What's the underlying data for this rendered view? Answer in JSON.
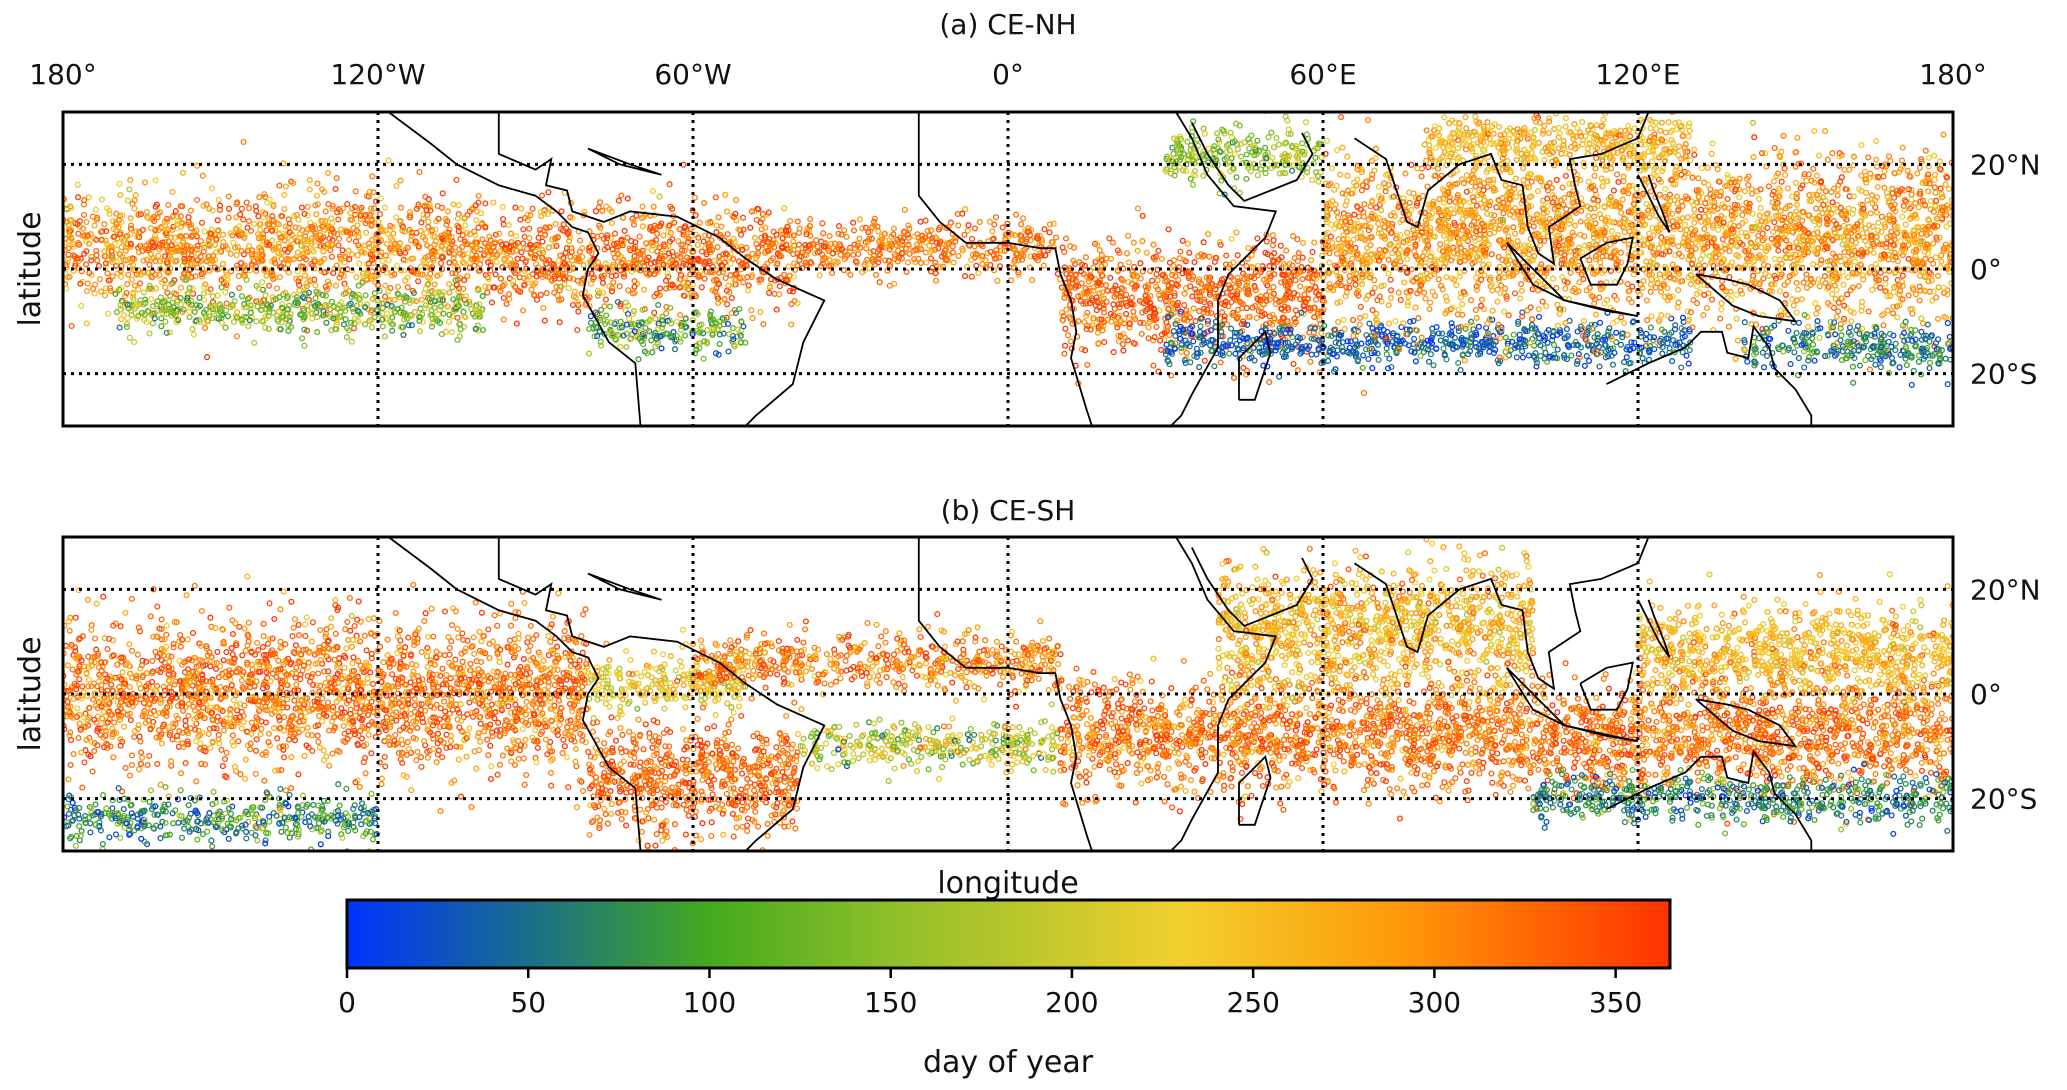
{
  "chart_data": [
    {
      "type": "scatter",
      "title": "(a) CE-NH",
      "xlabel": "",
      "ylabel": "latitude",
      "xlim": [
        -180,
        180
      ],
      "ylim": [
        -30,
        30
      ],
      "grid": true,
      "x_ticks": [
        -180,
        -120,
        -60,
        0,
        60,
        120,
        180
      ],
      "x_tick_labels": [
        "180°",
        "120°W",
        "60°W",
        "0°",
        "60°E",
        "120°E",
        "180°"
      ],
      "y_ticks": [
        20,
        0,
        -20
      ],
      "y_tick_labels": [
        "20°N",
        "0°",
        "20°S"
      ],
      "color_variable": "day of year",
      "regions": [
        {
          "lon": [
            -180,
            -100
          ],
          "lat_center": 4,
          "lat_spread": 12,
          "doy_mean": 300,
          "doy_sd": 45
        },
        {
          "lon": [
            -170,
            -100
          ],
          "lat_center": -8,
          "lat_spread": 5,
          "doy_mean": 150,
          "doy_sd": 50
        },
        {
          "lon": [
            -100,
            -40
          ],
          "lat_center": 2,
          "lat_spread": 11,
          "doy_mean": 320,
          "doy_sd": 45
        },
        {
          "lon": [
            -80,
            -50
          ],
          "lat_center": -12,
          "lat_spread": 5,
          "doy_mean": 120,
          "doy_sd": 60
        },
        {
          "lon": [
            -40,
            10
          ],
          "lat_center": 4,
          "lat_spread": 6,
          "doy_mean": 320,
          "doy_sd": 30
        },
        {
          "lon": [
            10,
            60
          ],
          "lat_center": -5,
          "lat_spread": 12,
          "doy_mean": 330,
          "doy_sd": 35
        },
        {
          "lon": [
            30,
            60
          ],
          "lat_center": 22,
          "lat_spread": 6,
          "doy_mean": 160,
          "doy_sd": 40
        },
        {
          "lon": [
            30,
            130
          ],
          "lat_center": -14,
          "lat_spread": 5,
          "doy_mean": 40,
          "doy_sd": 30
        },
        {
          "lon": [
            60,
            180
          ],
          "lat_center": 6,
          "lat_spread": 18,
          "doy_mean": 290,
          "doy_sd": 40
        },
        {
          "lon": [
            80,
            130
          ],
          "lat_center": 24,
          "lat_spread": 6,
          "doy_mean": 260,
          "doy_sd": 30
        },
        {
          "lon": [
            140,
            180
          ],
          "lat_center": -15,
          "lat_spread": 5,
          "doy_mean": 60,
          "doy_sd": 40
        }
      ]
    },
    {
      "type": "scatter",
      "title": "(b) CE-SH",
      "xlabel": "longitude",
      "ylabel": "latitude",
      "xlim": [
        -180,
        180
      ],
      "ylim": [
        -30,
        30
      ],
      "grid": true,
      "x_ticks": [
        -180,
        -120,
        -60,
        0,
        60,
        120,
        180
      ],
      "x_tick_labels": [],
      "y_ticks": [
        20,
        0,
        -20
      ],
      "y_tick_labels": [
        "20°N",
        "0°",
        "20°S"
      ],
      "color_variable": "day of year",
      "regions": [
        {
          "lon": [
            -180,
            -80
          ],
          "lat_center": 0,
          "lat_spread": 16,
          "doy_mean": 320,
          "doy_sd": 40
        },
        {
          "lon": [
            -180,
            -120
          ],
          "lat_center": -24,
          "lat_spread": 5,
          "doy_mean": 80,
          "doy_sd": 50
        },
        {
          "lon": [
            -80,
            -40
          ],
          "lat_center": -16,
          "lat_spread": 12,
          "doy_mean": 330,
          "doy_sd": 30
        },
        {
          "lon": [
            -80,
            -50
          ],
          "lat_center": 2,
          "lat_spread": 6,
          "doy_mean": 230,
          "doy_sd": 40
        },
        {
          "lon": [
            -60,
            10
          ],
          "lat_center": 6,
          "lat_spread": 6,
          "doy_mean": 310,
          "doy_sd": 40
        },
        {
          "lon": [
            -40,
            10
          ],
          "lat_center": -10,
          "lat_spread": 5,
          "doy_mean": 180,
          "doy_sd": 60
        },
        {
          "lon": [
            10,
            60
          ],
          "lat_center": -8,
          "lat_spread": 12,
          "doy_mean": 320,
          "doy_sd": 40
        },
        {
          "lon": [
            40,
            100
          ],
          "lat_center": 12,
          "lat_spread": 14,
          "doy_mean": 260,
          "doy_sd": 40
        },
        {
          "lon": [
            60,
            180
          ],
          "lat_center": -8,
          "lat_spread": 12,
          "doy_mean": 320,
          "doy_sd": 35
        },
        {
          "lon": [
            100,
            180
          ],
          "lat_center": -20,
          "lat_spread": 5,
          "doy_mean": 70,
          "doy_sd": 40
        },
        {
          "lon": [
            120,
            180
          ],
          "lat_center": 8,
          "lat_spread": 10,
          "doy_mean": 260,
          "doy_sd": 35
        }
      ]
    }
  ],
  "colorbar": {
    "label": "day of year",
    "range": [
      0,
      365
    ],
    "ticks": [
      0,
      50,
      100,
      150,
      200,
      250,
      300,
      350
    ],
    "tick_labels": [
      "0",
      "50",
      "100",
      "150",
      "200",
      "250",
      "300",
      "350"
    ],
    "colors": [
      {
        "value": 0,
        "color": "#0033ff"
      },
      {
        "value": 50,
        "color": "#1a6e8a"
      },
      {
        "value": 100,
        "color": "#44aa1e"
      },
      {
        "value": 150,
        "color": "#8fbf2a"
      },
      {
        "value": 230,
        "color": "#f2d02e"
      },
      {
        "value": 290,
        "color": "#ff9a0a"
      },
      {
        "value": 365,
        "color": "#ff3300"
      }
    ]
  },
  "map_style": {
    "coastline_color": "#000000",
    "grid_color": "#000000"
  }
}
